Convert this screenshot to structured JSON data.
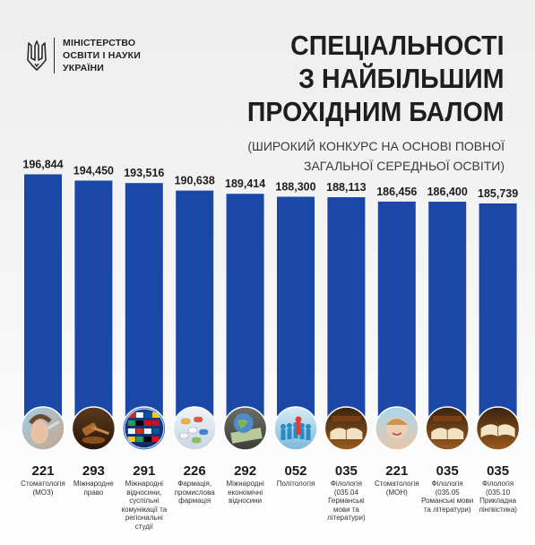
{
  "header": {
    "ministry_lines": [
      "МІНІСТЕРСТВО",
      "ОСВІТИ І НАУКИ",
      "УКРАЇНИ"
    ],
    "emblem_icon": "trident-icon"
  },
  "chart_data": {
    "type": "bar",
    "title_lines": [
      "СПЕЦІАЛЬНОСТІ",
      "З НАЙБІЛЬШИМ",
      "ПРОХІДНИМ БАЛОМ"
    ],
    "subtitle_lines": [
      "(ШИРОКИЙ КОНКУРС НА ОСНОВІ ПОВНОЇ",
      "ЗАГАЛЬНОЇ СЕРЕДНЬОЇ ОСВІТИ)"
    ],
    "values": [
      196.844,
      194.45,
      193.516,
      190.638,
      189.414,
      188.3,
      188.113,
      186.456,
      186.4,
      185.739
    ],
    "value_labels": [
      "196,844",
      "194,450",
      "193,516",
      "190,638",
      "189,414",
      "188,300",
      "188,113",
      "186,456",
      "186,400",
      "185,739"
    ],
    "codes": [
      "221",
      "293",
      "291",
      "226",
      "292",
      "052",
      "035",
      "221",
      "035",
      "035"
    ],
    "names": [
      "Стоматологія (МОЗ)",
      "Міжнародне право",
      "Міжнародні відносини, суспільні комунікації та регіональні студії",
      "Фармація, промислова фармація",
      "Міжнародні економічні відносини",
      "Політологія",
      "Філологія (035.04 Германські мови та літератури)",
      "Стоматологія (МОН)",
      "Філологія (035.05 Романські мови та літератури)",
      "Філологія (035.10 Прикладна лінгвістика)"
    ],
    "icons": [
      "dentist-photo-icon",
      "gavel-icon",
      "globe-flags-icon",
      "pills-icon",
      "money-globe-icon",
      "political-figures-icon",
      "books-icon",
      "child-dental-icon",
      "books-icon",
      "open-book-icon"
    ],
    "bar_color": "#1b48a6",
    "ylim": [
      100,
      197
    ]
  }
}
